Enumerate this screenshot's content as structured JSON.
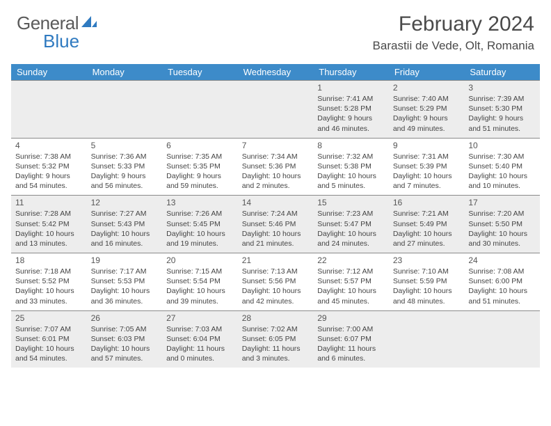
{
  "brand": {
    "word1": "General",
    "word2": "Blue",
    "text_color": "#5a5a5a",
    "accent_color": "#2f7ac0"
  },
  "title": {
    "month": "February 2024",
    "location": "Barastii de Vede, Olt, Romania"
  },
  "colors": {
    "header_bg": "#3d8bc9",
    "header_text": "#ffffff",
    "cell_border": "#8a8a8a",
    "shaded_bg": "#ededed",
    "body_text": "#444444"
  },
  "day_names": [
    "Sunday",
    "Monday",
    "Tuesday",
    "Wednesday",
    "Thursday",
    "Friday",
    "Saturday"
  ],
  "weeks": [
    [
      {
        "empty": true
      },
      {
        "empty": true
      },
      {
        "empty": true
      },
      {
        "empty": true
      },
      {
        "n": "1",
        "sr": "Sunrise: 7:41 AM",
        "ss": "Sunset: 5:28 PM",
        "dl1": "Daylight: 9 hours",
        "dl2": "and 46 minutes."
      },
      {
        "n": "2",
        "sr": "Sunrise: 7:40 AM",
        "ss": "Sunset: 5:29 PM",
        "dl1": "Daylight: 9 hours",
        "dl2": "and 49 minutes."
      },
      {
        "n": "3",
        "sr": "Sunrise: 7:39 AM",
        "ss": "Sunset: 5:30 PM",
        "dl1": "Daylight: 9 hours",
        "dl2": "and 51 minutes."
      }
    ],
    [
      {
        "n": "4",
        "sr": "Sunrise: 7:38 AM",
        "ss": "Sunset: 5:32 PM",
        "dl1": "Daylight: 9 hours",
        "dl2": "and 54 minutes."
      },
      {
        "n": "5",
        "sr": "Sunrise: 7:36 AM",
        "ss": "Sunset: 5:33 PM",
        "dl1": "Daylight: 9 hours",
        "dl2": "and 56 minutes."
      },
      {
        "n": "6",
        "sr": "Sunrise: 7:35 AM",
        "ss": "Sunset: 5:35 PM",
        "dl1": "Daylight: 9 hours",
        "dl2": "and 59 minutes."
      },
      {
        "n": "7",
        "sr": "Sunrise: 7:34 AM",
        "ss": "Sunset: 5:36 PM",
        "dl1": "Daylight: 10 hours",
        "dl2": "and 2 minutes."
      },
      {
        "n": "8",
        "sr": "Sunrise: 7:32 AM",
        "ss": "Sunset: 5:38 PM",
        "dl1": "Daylight: 10 hours",
        "dl2": "and 5 minutes."
      },
      {
        "n": "9",
        "sr": "Sunrise: 7:31 AM",
        "ss": "Sunset: 5:39 PM",
        "dl1": "Daylight: 10 hours",
        "dl2": "and 7 minutes."
      },
      {
        "n": "10",
        "sr": "Sunrise: 7:30 AM",
        "ss": "Sunset: 5:40 PM",
        "dl1": "Daylight: 10 hours",
        "dl2": "and 10 minutes."
      }
    ],
    [
      {
        "n": "11",
        "sr": "Sunrise: 7:28 AM",
        "ss": "Sunset: 5:42 PM",
        "dl1": "Daylight: 10 hours",
        "dl2": "and 13 minutes."
      },
      {
        "n": "12",
        "sr": "Sunrise: 7:27 AM",
        "ss": "Sunset: 5:43 PM",
        "dl1": "Daylight: 10 hours",
        "dl2": "and 16 minutes."
      },
      {
        "n": "13",
        "sr": "Sunrise: 7:26 AM",
        "ss": "Sunset: 5:45 PM",
        "dl1": "Daylight: 10 hours",
        "dl2": "and 19 minutes."
      },
      {
        "n": "14",
        "sr": "Sunrise: 7:24 AM",
        "ss": "Sunset: 5:46 PM",
        "dl1": "Daylight: 10 hours",
        "dl2": "and 21 minutes."
      },
      {
        "n": "15",
        "sr": "Sunrise: 7:23 AM",
        "ss": "Sunset: 5:47 PM",
        "dl1": "Daylight: 10 hours",
        "dl2": "and 24 minutes."
      },
      {
        "n": "16",
        "sr": "Sunrise: 7:21 AM",
        "ss": "Sunset: 5:49 PM",
        "dl1": "Daylight: 10 hours",
        "dl2": "and 27 minutes."
      },
      {
        "n": "17",
        "sr": "Sunrise: 7:20 AM",
        "ss": "Sunset: 5:50 PM",
        "dl1": "Daylight: 10 hours",
        "dl2": "and 30 minutes."
      }
    ],
    [
      {
        "n": "18",
        "sr": "Sunrise: 7:18 AM",
        "ss": "Sunset: 5:52 PM",
        "dl1": "Daylight: 10 hours",
        "dl2": "and 33 minutes."
      },
      {
        "n": "19",
        "sr": "Sunrise: 7:17 AM",
        "ss": "Sunset: 5:53 PM",
        "dl1": "Daylight: 10 hours",
        "dl2": "and 36 minutes."
      },
      {
        "n": "20",
        "sr": "Sunrise: 7:15 AM",
        "ss": "Sunset: 5:54 PM",
        "dl1": "Daylight: 10 hours",
        "dl2": "and 39 minutes."
      },
      {
        "n": "21",
        "sr": "Sunrise: 7:13 AM",
        "ss": "Sunset: 5:56 PM",
        "dl1": "Daylight: 10 hours",
        "dl2": "and 42 minutes."
      },
      {
        "n": "22",
        "sr": "Sunrise: 7:12 AM",
        "ss": "Sunset: 5:57 PM",
        "dl1": "Daylight: 10 hours",
        "dl2": "and 45 minutes."
      },
      {
        "n": "23",
        "sr": "Sunrise: 7:10 AM",
        "ss": "Sunset: 5:59 PM",
        "dl1": "Daylight: 10 hours",
        "dl2": "and 48 minutes."
      },
      {
        "n": "24",
        "sr": "Sunrise: 7:08 AM",
        "ss": "Sunset: 6:00 PM",
        "dl1": "Daylight: 10 hours",
        "dl2": "and 51 minutes."
      }
    ],
    [
      {
        "n": "25",
        "sr": "Sunrise: 7:07 AM",
        "ss": "Sunset: 6:01 PM",
        "dl1": "Daylight: 10 hours",
        "dl2": "and 54 minutes."
      },
      {
        "n": "26",
        "sr": "Sunrise: 7:05 AM",
        "ss": "Sunset: 6:03 PM",
        "dl1": "Daylight: 10 hours",
        "dl2": "and 57 minutes."
      },
      {
        "n": "27",
        "sr": "Sunrise: 7:03 AM",
        "ss": "Sunset: 6:04 PM",
        "dl1": "Daylight: 11 hours",
        "dl2": "and 0 minutes."
      },
      {
        "n": "28",
        "sr": "Sunrise: 7:02 AM",
        "ss": "Sunset: 6:05 PM",
        "dl1": "Daylight: 11 hours",
        "dl2": "and 3 minutes."
      },
      {
        "n": "29",
        "sr": "Sunrise: 7:00 AM",
        "ss": "Sunset: 6:07 PM",
        "dl1": "Daylight: 11 hours",
        "dl2": "and 6 minutes."
      },
      {
        "empty": true
      },
      {
        "empty": true
      }
    ]
  ]
}
